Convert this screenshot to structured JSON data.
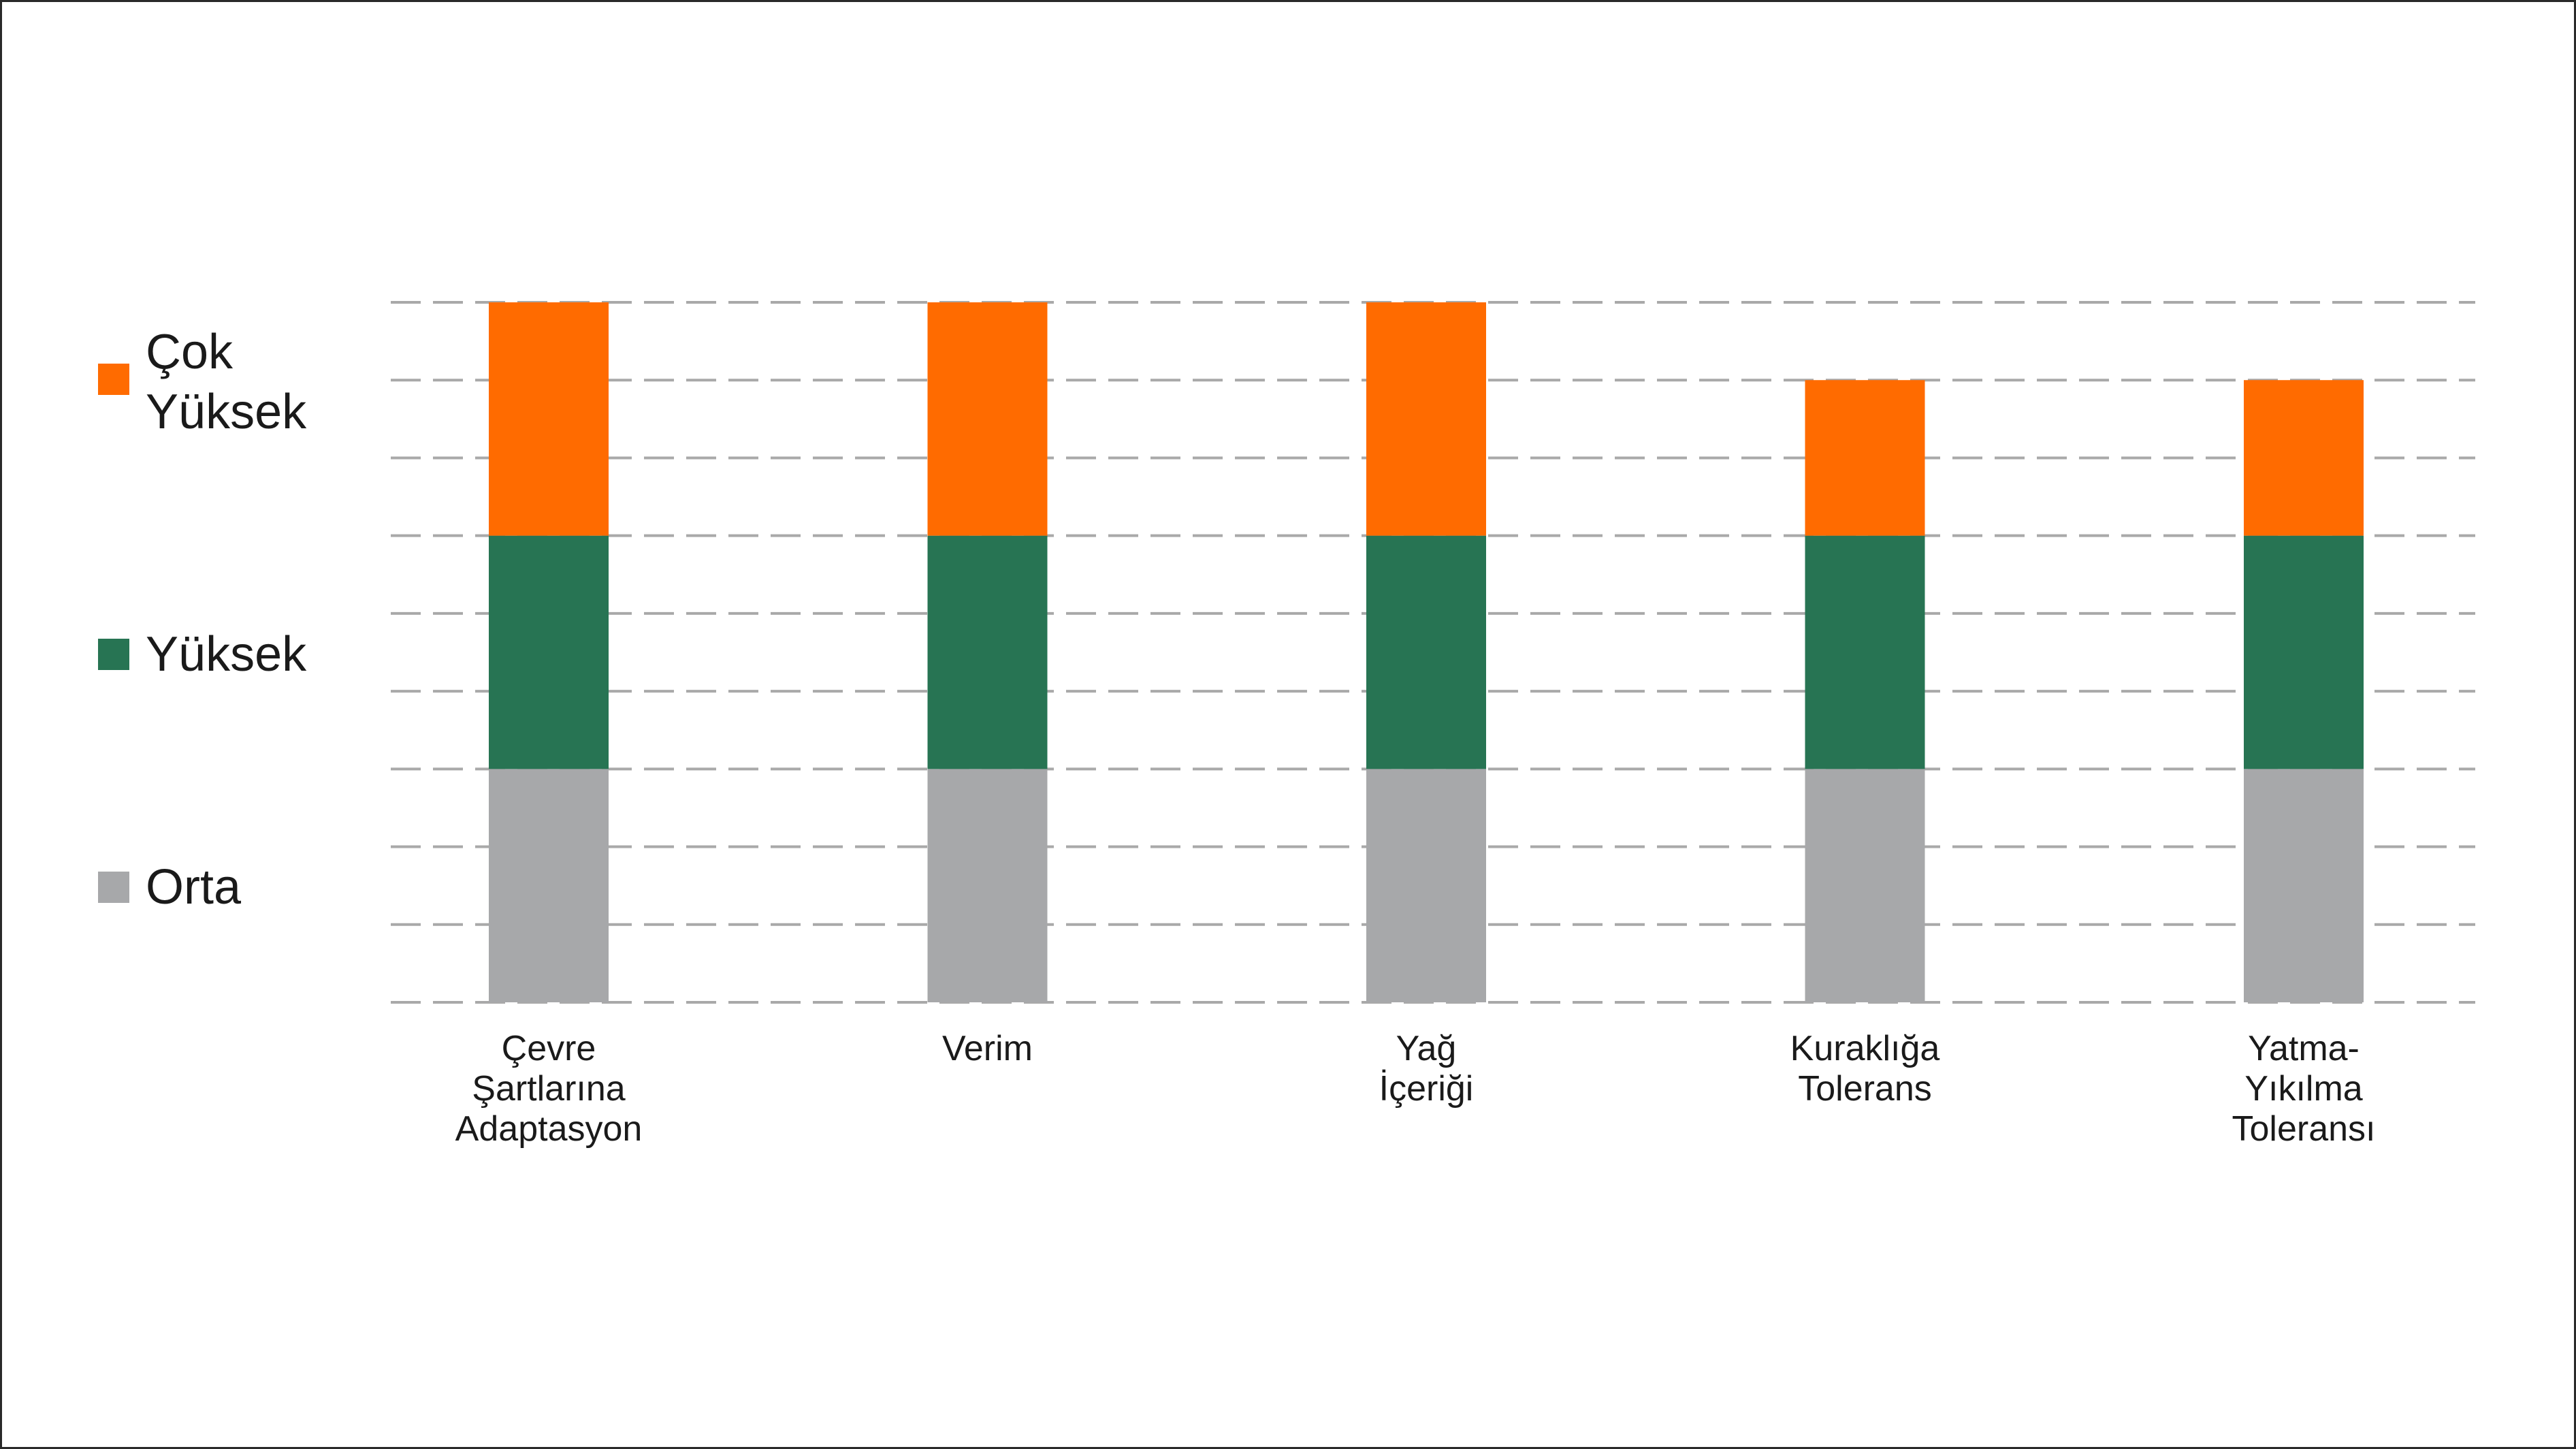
{
  "chart_data": {
    "type": "bar",
    "stacked": true,
    "categories": [
      [
        "Çevre",
        "Şartlarına",
        "Adaptasyon"
      ],
      [
        "Verim"
      ],
      [
        "Yağ",
        "İçeriği"
      ],
      [
        "Kuraklığa",
        "Tolerans"
      ],
      [
        "Yatma-",
        "Yıkılma",
        "Toleransı"
      ]
    ],
    "series": [
      {
        "name": "Orta",
        "color": "#a7a8aa",
        "values": [
          3,
          3,
          3,
          3,
          3
        ]
      },
      {
        "name": "Yüksek",
        "color": "#277453",
        "values": [
          3,
          3,
          3,
          3,
          3
        ]
      },
      {
        "name": "Çok Yüksek",
        "color": "#ff6b00",
        "values": [
          3,
          3,
          3,
          2,
          2
        ]
      }
    ],
    "ylim": [
      0,
      9
    ],
    "grid": true,
    "legend_position": "left"
  }
}
